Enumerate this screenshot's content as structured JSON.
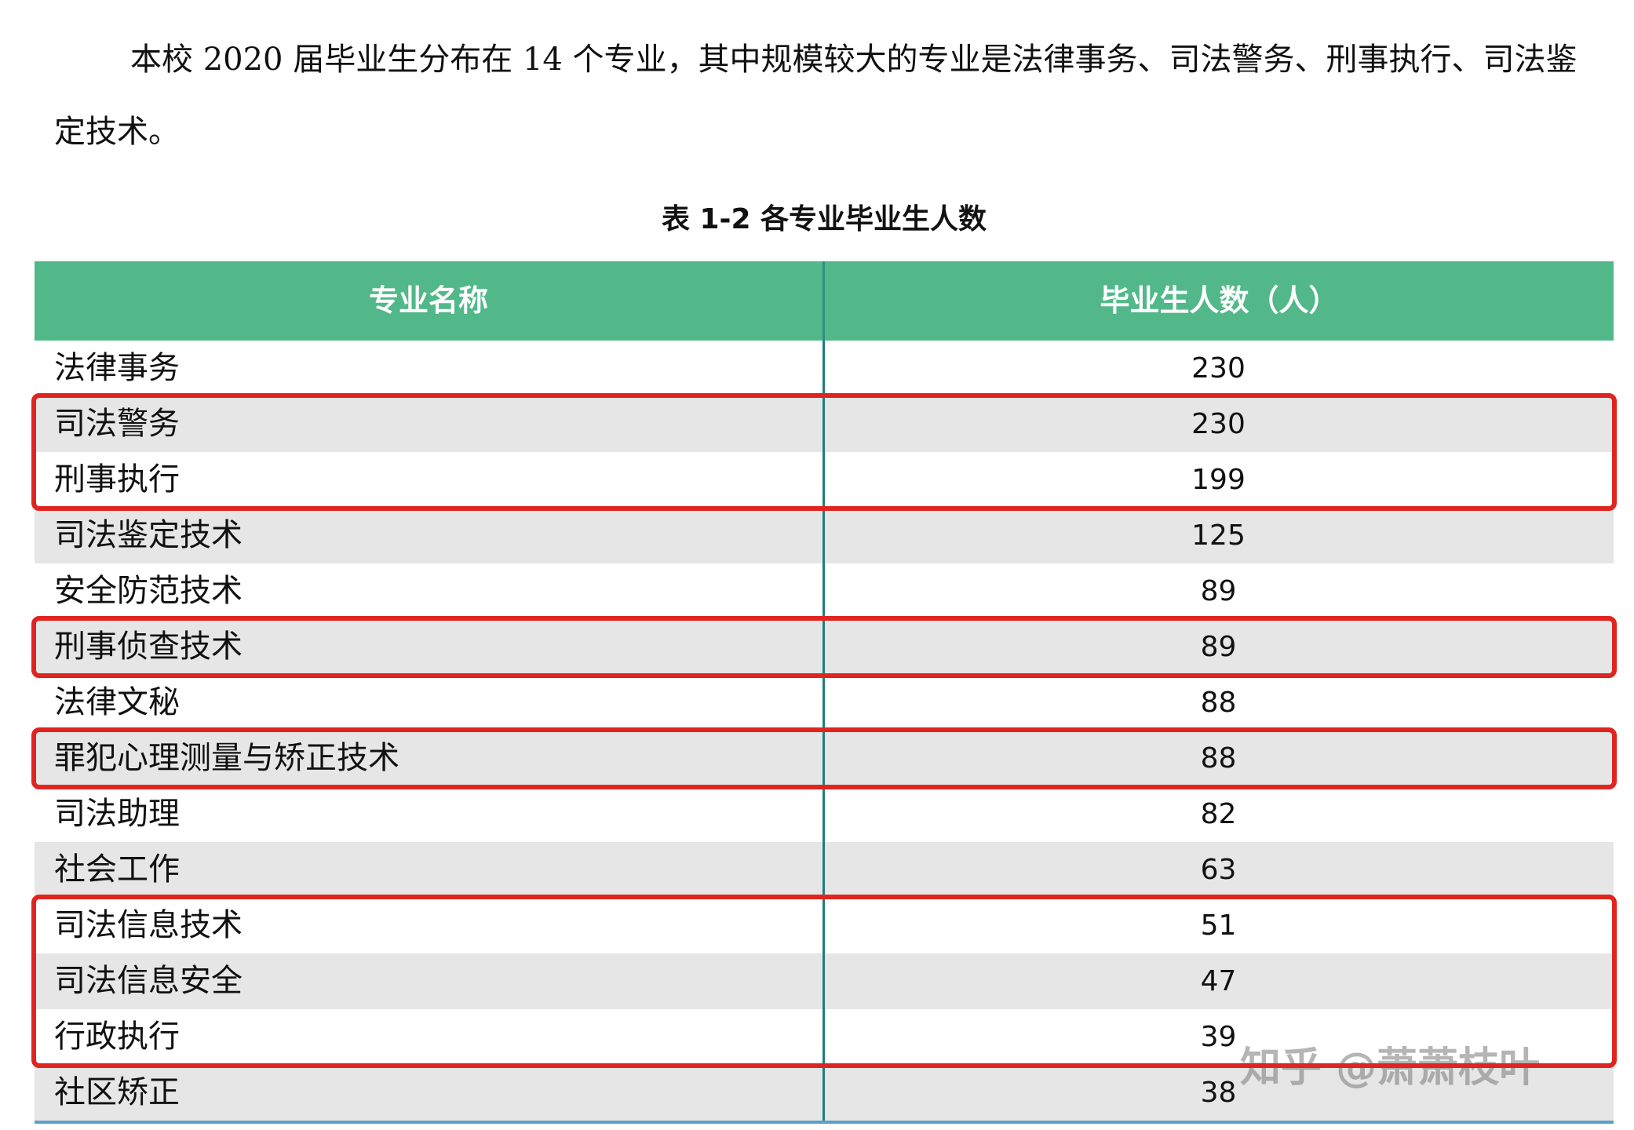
{
  "paragraph": "本校 2020 届毕业生分布在 14 个专业，其中规模较大的专业是法律事务、司法警务、刑事执行、司法鉴定技术。",
  "caption": "表 1-2 各专业毕业生人数",
  "table": {
    "header": [
      "专业名称",
      "毕业生人数（人）"
    ],
    "rows": [
      [
        "法律事务",
        230
      ],
      [
        "司法警务",
        230
      ],
      [
        "刑事执行",
        199
      ],
      [
        "司法鉴定技术",
        125
      ],
      [
        "安全防范技术",
        89
      ],
      [
        "刑事侦查技术",
        89
      ],
      [
        "法律文秘",
        88
      ],
      [
        "罪犯心理测量与矫正技术",
        88
      ],
      [
        "司法助理",
        82
      ],
      [
        "社会工作",
        63
      ],
      [
        "司法信息技术",
        51
      ],
      [
        "司法信息安全",
        47
      ],
      [
        "行政执行",
        39
      ],
      [
        "社区矫正",
        38
      ]
    ]
  },
  "watermark": "知乎 @萧萧枝叶"
}
